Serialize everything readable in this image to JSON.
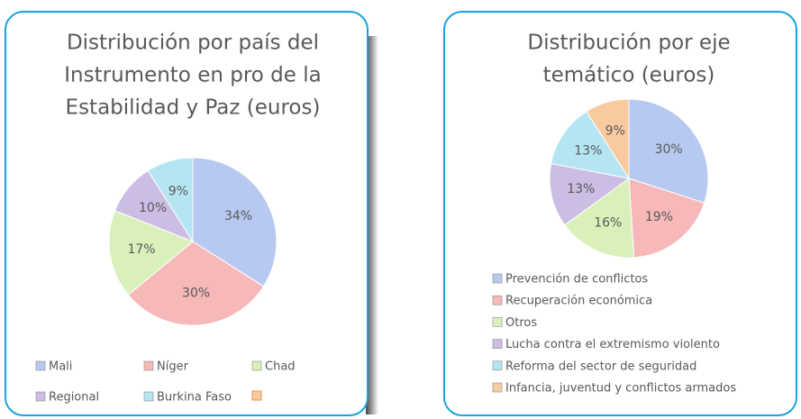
{
  "chart_data": [
    {
      "type": "pie",
      "title": [
        "Distribución por país del",
        "Instrumento en pro de la",
        "Estabilidad y Paz (euros)"
      ],
      "categories": [
        "Mali",
        "Níger",
        "Chad",
        "Regional",
        "Burkina Faso"
      ],
      "values": [
        34,
        30,
        17,
        10,
        9
      ],
      "value_labels": [
        "34%",
        "30%",
        "17%",
        "10%",
        "9%"
      ],
      "colors": [
        "#b7c9f1",
        "#f6b8b8",
        "#d9f0bb",
        "#cbbde3",
        "#b5e5f3"
      ],
      "legend": "bottom"
    },
    {
      "type": "pie",
      "title": [
        "Distribución por eje",
        "temático (euros)"
      ],
      "categories": [
        "Prevención de conflictos",
        "Recuperación económica",
        "Otros",
        "Lucha contra el extremismo violento",
        "Reforma del sector de seguridad",
        "Infancia, juventud y conflictos armados"
      ],
      "values": [
        30,
        19,
        16,
        13,
        13,
        9
      ],
      "value_labels": [
        "30%",
        "19%",
        "16%",
        "13%",
        "13%",
        "9%"
      ],
      "colors": [
        "#b7c9f1",
        "#f6b8b8",
        "#d9f0bb",
        "#cbbde3",
        "#b5e5f3",
        "#f8ca9f"
      ],
      "legend": "bottom"
    }
  ]
}
